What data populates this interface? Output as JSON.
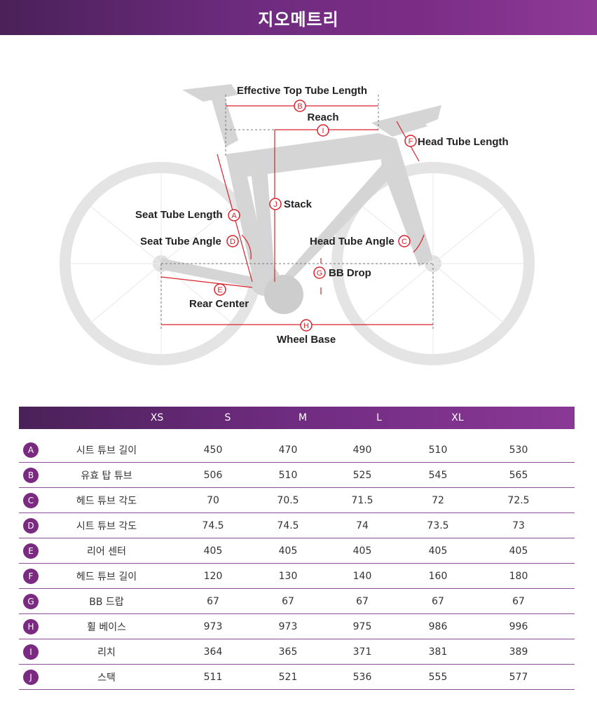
{
  "header": {
    "title": "지오메트리"
  },
  "diagram": {
    "labels": {
      "effective_top_tube": "Effective Top Tube Length",
      "reach": "Reach",
      "head_tube_length": "Head Tube Length",
      "stack": "Stack",
      "seat_tube_length": "Seat Tube Length",
      "seat_tube_angle": "Seat Tube Angle",
      "head_tube_angle": "Head Tube Angle",
      "bb_drop": "BB Drop",
      "rear_center": "Rear Center",
      "wheel_base": "Wheel Base"
    },
    "letters": {
      "A": "A",
      "B": "B",
      "C": "C",
      "D": "D",
      "E": "E",
      "F": "F",
      "G": "G",
      "H": "H",
      "I": "I",
      "J": "J"
    },
    "colors": {
      "frame": "#d3d3d3",
      "measure": "#d8222b",
      "text": "#222222"
    }
  },
  "table": {
    "columns": [
      "XS",
      "S",
      "M",
      "L",
      "XL"
    ],
    "rows": [
      {
        "letter": "A",
        "label": "시트 튜브 길이",
        "values": [
          "450",
          "470",
          "490",
          "510",
          "530"
        ]
      },
      {
        "letter": "B",
        "label": "유효 탑 튜브",
        "values": [
          "506",
          "510",
          "525",
          "545",
          "565"
        ]
      },
      {
        "letter": "C",
        "label": "헤드 튜브 각도",
        "values": [
          "70",
          "70.5",
          "71.5",
          "72",
          "72.5"
        ]
      },
      {
        "letter": "D",
        "label": "시트 튜브 각도",
        "values": [
          "74.5",
          "74.5",
          "74",
          "73.5",
          "73"
        ]
      },
      {
        "letter": "E",
        "label": "리어 센터",
        "values": [
          "405",
          "405",
          "405",
          "405",
          "405"
        ]
      },
      {
        "letter": "F",
        "label": "헤드 튜브 길이",
        "values": [
          "120",
          "130",
          "140",
          "160",
          "180"
        ]
      },
      {
        "letter": "G",
        "label": "BB 드랍",
        "values": [
          "67",
          "67",
          "67",
          "67",
          "67"
        ]
      },
      {
        "letter": "H",
        "label": "휠 베이스",
        "values": [
          "973",
          "973",
          "975",
          "986",
          "996"
        ]
      },
      {
        "letter": "I",
        "label": "리치",
        "values": [
          "364",
          "365",
          "371",
          "381",
          "389"
        ]
      },
      {
        "letter": "J",
        "label": "스택",
        "values": [
          "511",
          "521",
          "536",
          "555",
          "577"
        ]
      }
    ],
    "colors": {
      "header_bg": "#6d2b7e",
      "badge": "#7a2a80",
      "rule": "#8a4e95"
    }
  }
}
